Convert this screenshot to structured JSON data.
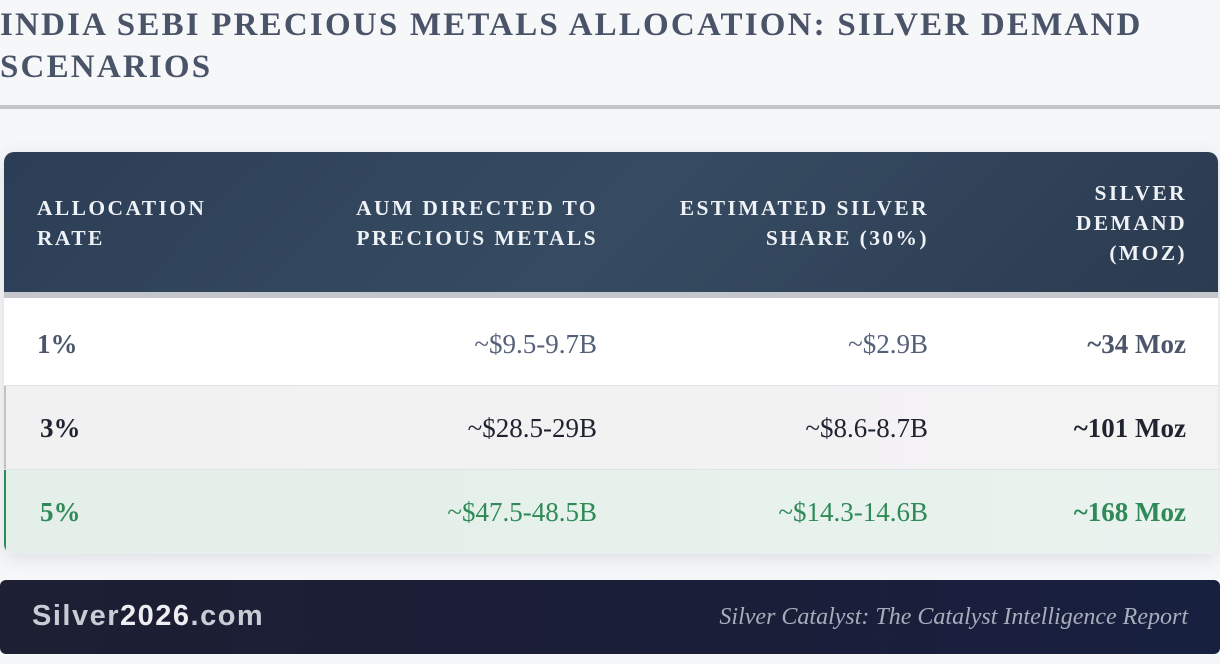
{
  "title": "INDIA SEBI PRECIOUS METALS ALLOCATION: SILVER DEMAND SCENARIOS",
  "table": {
    "headers": [
      "ALLOCATION RATE",
      "AUM DIRECTED TO PRECIOUS METALS",
      "ESTIMATED SILVER SHARE (30%)",
      "SILVER DEMAND (MOZ)"
    ],
    "rows": [
      [
        "1%",
        "~$9.5-9.7B",
        "~$2.9B",
        "~34 Moz"
      ],
      [
        "3%",
        "~$28.5-29B",
        "~$8.6-8.7B",
        "~101 Moz"
      ],
      [
        "5%",
        "~$47.5-48.5B",
        "~$14.3-14.6B",
        "~168 Moz"
      ]
    ]
  },
  "footer": {
    "brand_part1": "Silver",
    "brand_part2": "2026",
    "brand_part3": ".com",
    "tagline": "Silver Catalyst: The Catalyst Intelligence Report"
  },
  "colors": {
    "header_bg": "#2f4158",
    "highlight_green": "#2f8a58",
    "footer_bg": "#1b1f36"
  }
}
